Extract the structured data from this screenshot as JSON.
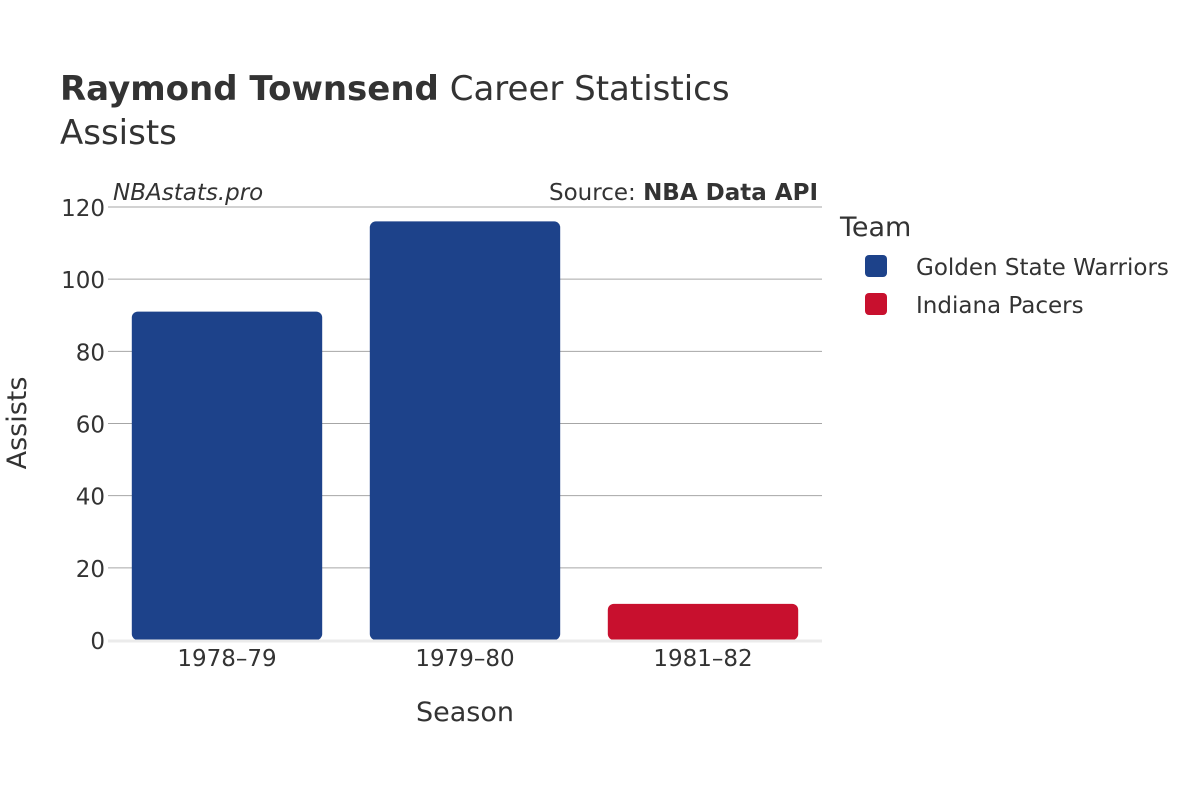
{
  "title": {
    "player": "Raymond Townsend",
    "rest": " Career Statistics",
    "stat": "Assists"
  },
  "watermark": "NBAstats.pro",
  "source": {
    "prefix": "Source: ",
    "name": "NBA Data API"
  },
  "legend": {
    "title": "Team",
    "placement": "right"
  },
  "colors": {
    "golden_state": "#1d428a",
    "indiana": "#c8102e",
    "grid": "#a6a6a6",
    "baseline": "#ebebeb"
  },
  "chart_data": {
    "type": "bar",
    "title": "Raymond Townsend Career Statistics Assists",
    "xlabel": "Season",
    "ylabel": "Assists",
    "categories": [
      "1978–79",
      "1979–80",
      "1981–82"
    ],
    "ylim": [
      0,
      120
    ],
    "yticks": [
      0,
      20,
      40,
      60,
      80,
      100,
      120
    ],
    "grid": true,
    "series": [
      {
        "name": "Golden State Warriors",
        "color": "#1d428a",
        "values": [
          91,
          116,
          null
        ]
      },
      {
        "name": "Indiana Pacers",
        "color": "#c8102e",
        "values": [
          null,
          null,
          10
        ]
      }
    ]
  }
}
